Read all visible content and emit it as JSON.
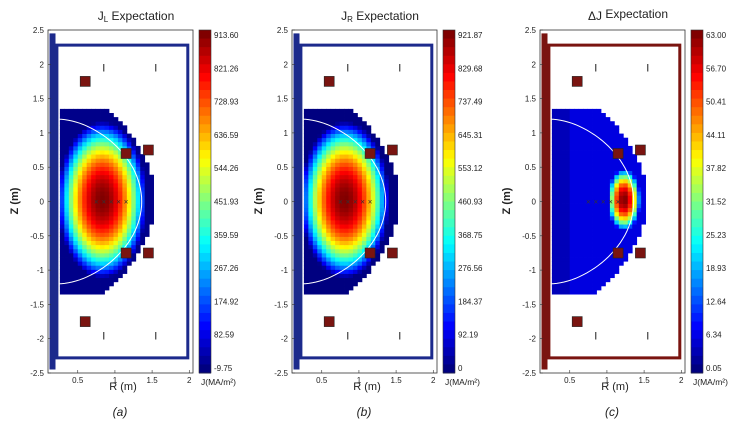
{
  "figure": {
    "panel_labels": [
      "(a)",
      "(b)",
      "(c)"
    ]
  },
  "chart_data": [
    {
      "type": "heatmap",
      "title": "J_L Expectation",
      "title_main": "J",
      "title_sub": "L",
      "title_rest": " Expectation",
      "xlabel": "R (m)",
      "ylabel": "Z (m)",
      "xlim": [
        0.1,
        2.05
      ],
      "ylim": [
        -2.5,
        2.5
      ],
      "xticks": [
        0.5,
        1,
        1.5,
        2
      ],
      "xtick_labels": [
        "0.5",
        "1",
        "1.5",
        "2"
      ],
      "yticks": [
        2.5,
        2,
        1.5,
        1,
        0.5,
        0,
        -0.5,
        -1,
        -1.5,
        -2,
        -2.5
      ],
      "ytick_labels": [
        "2.5",
        "2",
        "1.5",
        "1",
        "0.5",
        "0",
        "-0.5",
        "-1",
        "-1.5",
        "-2",
        "-2.5"
      ],
      "colorbar": {
        "label": "J(MA/m²)",
        "min": -9.75,
        "max": 913.6,
        "colormap": "jet",
        "tick_labels": [
          "913.60",
          "821.26",
          "728.93",
          "636.59",
          "544.26",
          "451.93",
          "359.59",
          "267.26",
          "174.92",
          "82.59",
          "-9.75"
        ]
      },
      "field": {
        "model": "peaked",
        "center_R": 0.8,
        "peak": 913.6,
        "background": 0.0
      },
      "vessel_color": "#1c2a8c",
      "boundary_color": "#ffffff"
    },
    {
      "type": "heatmap",
      "title": "J_R Expectation",
      "title_main": "J",
      "title_sub": "R",
      "title_rest": " Expectation",
      "xlabel": "R (m)",
      "ylabel": "Z (m)",
      "xlim": [
        0.1,
        2.05
      ],
      "ylim": [
        -2.5,
        2.5
      ],
      "xticks": [
        0.5,
        1,
        1.5,
        2
      ],
      "xtick_labels": [
        "0.5",
        "1",
        "1.5",
        "2"
      ],
      "yticks": [
        2.5,
        2,
        1.5,
        1,
        0.5,
        0,
        -0.5,
        -1,
        -1.5,
        -2,
        -2.5
      ],
      "ytick_labels": [
        "2.5",
        "2",
        "1.5",
        "1",
        "0.5",
        "0",
        "-0.5",
        "-1",
        "-1.5",
        "-2",
        "-2.5"
      ],
      "colorbar": {
        "label": "J(MA/m²)",
        "min": 0,
        "max": 921.87,
        "colormap": "jet",
        "tick_labels": [
          "921.87",
          "829.68",
          "737.49",
          "645.31",
          "553.12",
          "460.93",
          "368.75",
          "276.56",
          "184.37",
          "92.19",
          "0"
        ]
      },
      "field": {
        "model": "peaked",
        "center_R": 0.78,
        "peak": 921.87,
        "background": 0.0
      },
      "vessel_color": "#1c2a8c",
      "boundary_color": "#ffffff"
    },
    {
      "type": "heatmap",
      "title": "ΔJ Expectation",
      "title_main": "ΔJ",
      "title_sub": "",
      "title_rest": " Expectation",
      "xlabel": "R (m)",
      "ylabel": "Z (m)",
      "xlim": [
        0.1,
        2.05
      ],
      "ylim": [
        -2.5,
        2.5
      ],
      "xticks": [
        0.5,
        1,
        1.5,
        2
      ],
      "xtick_labels": [
        "0.5",
        "1",
        "1.5",
        "2"
      ],
      "yticks": [
        2.5,
        2,
        1.5,
        1,
        0.5,
        0,
        -0.5,
        -1,
        -1.5,
        -2,
        -2.5
      ],
      "ytick_labels": [
        "2.5",
        "2",
        "1.5",
        "1",
        "0.5",
        "0",
        "-0.5",
        "-1",
        "-1.5",
        "-2",
        "-2.5"
      ],
      "colorbar": {
        "label": "J(MA/m²)",
        "min": 0.05,
        "max": 63.0,
        "colormap": "jet",
        "tick_labels": [
          "63.00",
          "56.70",
          "50.41",
          "44.11",
          "37.82",
          "31.52",
          "25.23",
          "18.93",
          "12.64",
          "6.34",
          "0.05"
        ]
      },
      "field": {
        "model": "edge",
        "center_R": 1.2,
        "peak": 63.0,
        "background": 6.0
      },
      "vessel_color": "#7a1410",
      "boundary_color": "#ffffff"
    }
  ]
}
